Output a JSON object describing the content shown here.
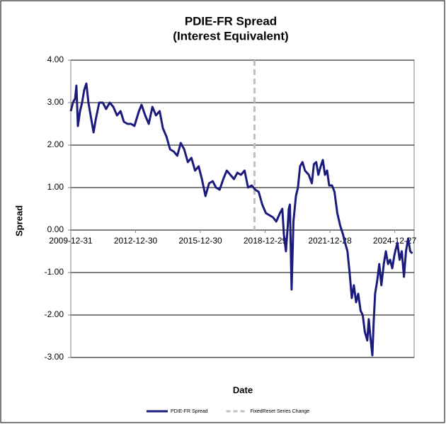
{
  "chart_data": {
    "type": "line",
    "title": "PDIE-FR Spread",
    "subtitle": "(Interest Equivalent)",
    "x_label": "Date",
    "y_label": "Spread",
    "xlim": [
      "2009-12-31",
      "2025-11-20"
    ],
    "xticks": [
      "2009-12-31",
      "2012-12-30",
      "2015-12-30",
      "2018-12-29",
      "2021-12-28",
      "2024-12-27"
    ],
    "ylim": [
      -3,
      4
    ],
    "yticks": [
      {
        "value": 4,
        "label": "4.00"
      },
      {
        "value": 3,
        "label": "3.00"
      },
      {
        "value": 2,
        "label": "2.00"
      },
      {
        "value": 1,
        "label": "1.00"
      },
      {
        "value": 0,
        "label": "0.00"
      },
      {
        "value": -1,
        "label": "-1.00"
      },
      {
        "value": -2,
        "label": "-2.00"
      },
      {
        "value": -3,
        "label": "-3.00"
      }
    ],
    "grid": true,
    "legend": "bottom",
    "series": [
      {
        "name": "PDIE-FR Spread",
        "color": "#1b1b7e",
        "style": "solid",
        "x": [
          "2009-12-31",
          "2010-02-05",
          "2010-03-15",
          "2010-04-05",
          "2010-04-30",
          "2010-06-05",
          "2010-07-10",
          "2010-08-15",
          "2010-09-20",
          "2010-10-25",
          "2010-12-01",
          "2011-01-20",
          "2011-02-25",
          "2011-04-25",
          "2011-06-25",
          "2011-08-20",
          "2011-10-20",
          "2011-12-20",
          "2012-02-20",
          "2012-04-20",
          "2012-06-15",
          "2012-08-15",
          "2012-10-15",
          "2012-12-10",
          "2013-02-25",
          "2013-04-10",
          "2013-06-10",
          "2013-08-10",
          "2013-10-10",
          "2013-12-10",
          "2014-02-10",
          "2014-04-05",
          "2014-06-05",
          "2014-08-05",
          "2014-10-05",
          "2014-12-05",
          "2015-02-01",
          "2015-04-01",
          "2015-06-01",
          "2015-08-01",
          "2015-10-01",
          "2015-12-01",
          "2016-01-25",
          "2016-03-25",
          "2016-05-25",
          "2016-07-25",
          "2016-09-20",
          "2016-11-20",
          "2017-01-20",
          "2017-03-20",
          "2017-05-20",
          "2017-07-20",
          "2017-09-15",
          "2017-11-15",
          "2018-01-15",
          "2018-03-15",
          "2018-05-15",
          "2018-07-15",
          "2018-09-10",
          "2018-11-10",
          "2019-01-10",
          "2019-03-10",
          "2019-05-10",
          "2019-07-05",
          "2019-09-05",
          "2019-10-15",
          "2019-11-10",
          "2019-12-15",
          "2020-01-15",
          "2020-02-01",
          "2020-02-20",
          "2020-03-20",
          "2020-04-20",
          "2020-06-01",
          "2020-07-05",
          "2020-08-10",
          "2020-09-20",
          "2020-11-01",
          "2021-01-05",
          "2021-02-25",
          "2021-04-01",
          "2021-05-10",
          "2021-06-15",
          "2021-07-25",
          "2021-08-30",
          "2021-10-05",
          "2021-11-10",
          "2021-12-15",
          "2022-02-01",
          "2022-03-15",
          "2022-05-01",
          "2022-06-20",
          "2022-08-05",
          "2022-09-10",
          "2022-10-20",
          "2022-11-25",
          "2023-01-01",
          "2023-02-05",
          "2023-03-15",
          "2023-04-20",
          "2023-05-30",
          "2023-07-05",
          "2023-08-10",
          "2023-09-20",
          "2023-10-15",
          "2023-11-10",
          "2023-12-15",
          "2024-01-05",
          "2024-01-30",
          "2024-03-05",
          "2024-04-10",
          "2024-05-15",
          "2024-06-25",
          "2024-07-30",
          "2024-09-05",
          "2024-10-10",
          "2024-11-15",
          "2024-12-20",
          "2025-01-05",
          "2025-02-10",
          "2025-03-20",
          "2025-04-25",
          "2025-06-01",
          "2025-07-05",
          "2025-08-10",
          "2025-09-15",
          "2025-10-20"
        ],
        "values": [
          2.8,
          3.0,
          3.1,
          3.4,
          2.45,
          2.8,
          3.0,
          3.3,
          3.45,
          3.0,
          2.7,
          2.3,
          2.6,
          3.0,
          3.0,
          2.85,
          3.0,
          2.9,
          2.7,
          2.8,
          2.55,
          2.5,
          2.5,
          2.45,
          2.8,
          2.95,
          2.7,
          2.5,
          2.9,
          2.7,
          2.8,
          2.4,
          2.2,
          1.9,
          1.85,
          1.75,
          2.05,
          1.9,
          1.6,
          1.7,
          1.4,
          1.5,
          1.2,
          0.8,
          1.1,
          1.15,
          1.0,
          0.95,
          1.2,
          1.4,
          1.3,
          1.2,
          1.35,
          1.3,
          1.4,
          1.0,
          1.05,
          0.95,
          0.9,
          0.6,
          0.4,
          0.35,
          0.3,
          0.2,
          0.4,
          0.5,
          -0.1,
          -0.5,
          0.1,
          0.5,
          0.6,
          -1.4,
          0.2,
          0.8,
          1.0,
          1.5,
          1.6,
          1.4,
          1.3,
          1.1,
          1.55,
          1.6,
          1.3,
          1.5,
          1.65,
          1.3,
          1.4,
          1.05,
          1.05,
          0.9,
          0.4,
          0.1,
          -0.1,
          -0.3,
          -0.5,
          -1.0,
          -1.6,
          -1.3,
          -1.7,
          -1.5,
          -1.9,
          -2.0,
          -2.4,
          -2.6,
          -2.1,
          -2.5,
          -2.95,
          -2.2,
          -1.5,
          -1.2,
          -0.8,
          -1.3,
          -0.8,
          -0.5,
          -0.8,
          -0.7,
          -0.9,
          -0.6,
          -0.5,
          -0.3,
          -0.7,
          -0.5,
          -1.1,
          -0.5,
          -0.2,
          -0.5,
          -0.55
        ]
      },
      {
        "name": "FixedReset Series Change",
        "color": "#bfbfbf",
        "style": "dashed",
        "x": [
          "2018-07-01",
          "2018-07-01"
        ],
        "values": [
          4,
          0
        ]
      }
    ]
  }
}
